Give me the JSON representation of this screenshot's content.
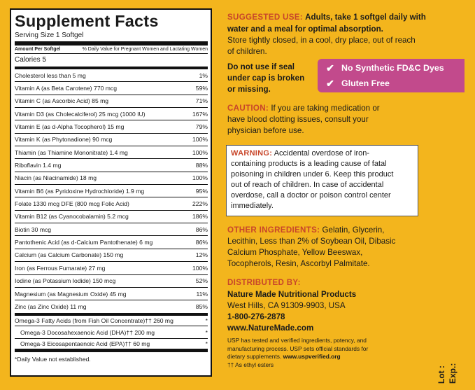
{
  "supplement_facts": {
    "title": "Supplement Facts",
    "serving_size": "Serving Size 1 Softgel",
    "header_left": "Amount Per Softgel",
    "header_right": "% Daily Value for Pregnant Women and Lactating Women",
    "calories": "Calories 5",
    "rows": [
      {
        "label": "Cholesterol  less than 5 mg",
        "dv": "1%"
      },
      {
        "label": "Vitamin A (as Beta Carotene) 770 mcg",
        "dv": "59%"
      },
      {
        "label": "Vitamin C (as Ascorbic Acid) 85 mg",
        "dv": "71%"
      },
      {
        "label": "Vitamin D3 (as Cholecalciferol) 25 mcg (1000 IU)",
        "dv": "167%"
      },
      {
        "label": "Vitamin E (as d-Alpha Tocopherol)  15 mg",
        "dv": "79%"
      },
      {
        "label": "Vitamin K (as Phytonadione)  90 mcg",
        "dv": "100%"
      },
      {
        "label": "Thiamin (as Thiamine Mononitrate)  1.4 mg",
        "dv": "100%"
      },
      {
        "label": "Riboflavin  1.4 mg",
        "dv": "88%"
      },
      {
        "label": "Niacin (as Niacinamide)  18 mg",
        "dv": "100%"
      },
      {
        "label": "Vitamin B6 (as Pyridoxine Hydrochloride)  1.9 mg",
        "dv": "95%"
      },
      {
        "label": "Folate  1330 mcg DFE (800 mcg Folic Acid)",
        "dv": "222%"
      },
      {
        "label": "Vitamin B12 (as Cyanocobalamin)  5.2 mcg",
        "dv": "186%"
      },
      {
        "label": "Biotin  30 mcg",
        "dv": "86%"
      },
      {
        "label": "Pantothenic Acid (as d-Calcium Pantothenate)  6 mg",
        "dv": "86%"
      },
      {
        "label": "Calcium (as Calcium Carbonate)  150 mg",
        "dv": "12%"
      },
      {
        "label": "Iron (as Ferrous Fumarate)  27 mg",
        "dv": "100%"
      },
      {
        "label": "Iodine (as Potassium Iodide)  150 mcg",
        "dv": "52%"
      },
      {
        "label": "Magnesium (as Magnesium Oxide)  45 mg",
        "dv": "11%"
      },
      {
        "label": "Zinc (as Zinc Oxide)  11 mg",
        "dv": "85%"
      }
    ],
    "omega_rows": [
      {
        "label": "Omega-3 Fatty Acids (from Fish Oil Concentrate)†† 260 mg",
        "dv": "*"
      },
      {
        "label": "Omega-3 Docosahexaenoic Acid (DHA)†† 200 mg",
        "dv": "*"
      },
      {
        "label": "Omega-3 Eicosapentaenoic Acid (EPA)†† 60 mg",
        "dv": "*"
      }
    ],
    "footnote": "*Daily Value not established."
  },
  "right": {
    "suggested_use_heading": "SUGGESTED USE:",
    "suggested_use_text1": "Adults, take 1 softgel daily with",
    "suggested_use_text2": "water and a meal for optimal absorption.",
    "storage1": "Store tightly closed, in a cool, dry place, out of reach",
    "storage2": "of children.",
    "seal1": "Do not use if seal",
    "seal2": "under cap is broken",
    "seal3": "or missing.",
    "badge1": "No Synthetic FD&C Dyes",
    "badge2": "Gluten Free",
    "caution_heading": "CAUTION:",
    "caution1": "If you are taking medication or",
    "caution2": "have blood clotting issues, consult your",
    "caution3": "physician before use.",
    "warning_heading": "WARNING:",
    "warning1": "Accidental overdose of iron-",
    "warning2": "containing products is a leading cause of fatal",
    "warning3": "poisoning in children under 6. Keep this product",
    "warning4": "out of reach of children. In case of accidental",
    "warning5": "overdose, call a doctor or poison control center",
    "warning6": "immediately.",
    "other_heading": "OTHER INGREDIENTS:",
    "other1": "Gelatin, Glycerin,",
    "other2": "Lecithin, Less than 2% of Soybean Oil, Dibasic",
    "other3": "Calcium Phosphate, Yellow Beeswax,",
    "other4": "Tocopherols, Resin, Ascorbyl Palmitate.",
    "distributed_heading": "DISTRIBUTED BY:",
    "company": "Nature Made Nutritional Products",
    "address": "West Hills, CA 91309-9903, USA",
    "phone": "1-800-276-2878",
    "website": "www.NatureMade.com",
    "usp1": "USP has tested and verified ingredients, potency, and",
    "usp2": "manufacturing process. USP sets official standards for",
    "usp3": "dietary supplements.",
    "usp_url": "www.uspverified.org",
    "ethyl": "†† As ethyl esters",
    "lot": "Lot :",
    "exp": "Exp.:"
  }
}
